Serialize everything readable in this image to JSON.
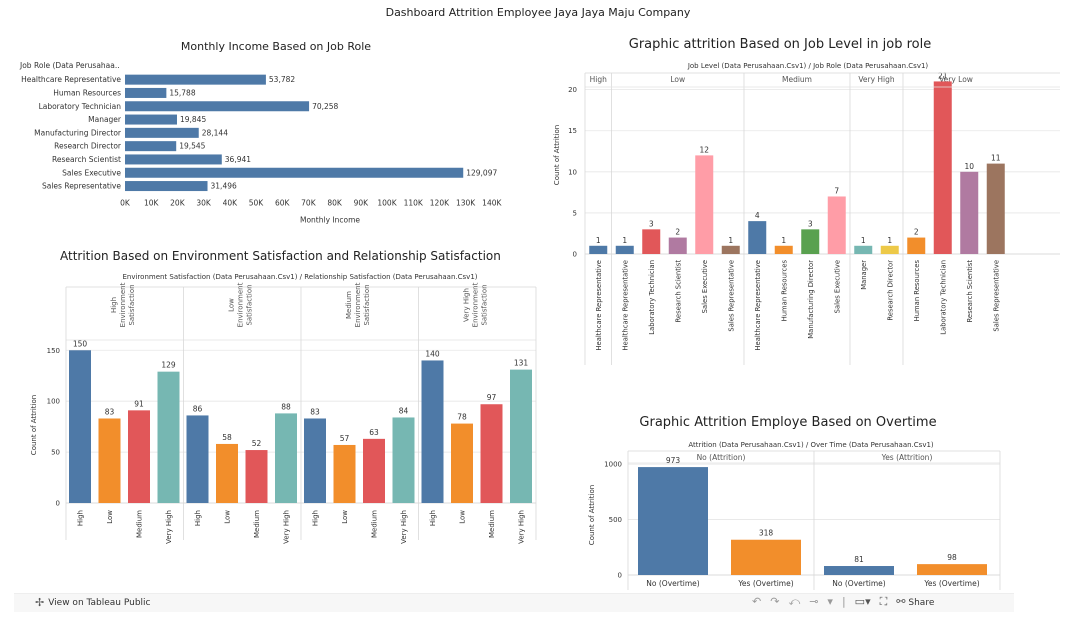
{
  "dashboard": {
    "title": "Dashboard Attrition Employee Jaya Jaya Maju Company"
  },
  "panel_income": {
    "title": "Monthly Income Based on Job Role",
    "header": "Job Role (Data Perusahaa..",
    "xlabel": "Monthly Income",
    "ticks": [
      "0K",
      "10K",
      "20K",
      "30K",
      "40K",
      "50K",
      "60K",
      "70K",
      "80K",
      "90K",
      "100K",
      "110K",
      "120K",
      "130K",
      "140K"
    ],
    "color": "#4e79a7"
  },
  "panel_joblevel": {
    "title": "Graphic attrition Based on Job Level in job role",
    "header": "Job Level (Data Perusahaan.Csv1) / Job Role (Data Perusahaan.Csv1)",
    "ylabel": "Count of Attrition",
    "yticks": [
      "0",
      "5",
      "10",
      "15",
      "20"
    ]
  },
  "panel_env": {
    "title": "Attrition Based on  Environment Satisfaction and Relationship Satisfaction",
    "header": "Environment Satisfaction (Data Perusahaan.Csv1) / Relationship Satisfaction (Data Perusahaan.Csv1)",
    "ylabel": "Count of Attrition",
    "yticks": [
      "0",
      "50",
      "100",
      "150"
    ]
  },
  "panel_overtime": {
    "title": "Graphic Attrition Employe Based on Overtime",
    "header": "Attrition (Data Perusahaan.Csv1) / Over Time (Data Perusahaan.Csv1)",
    "ylabel": "Count of Attrition",
    "yticks": [
      "0",
      "500",
      "1000"
    ]
  },
  "toolbar": {
    "view_label": "View on Tableau Public",
    "share_label": "Share",
    "icons": [
      "tableau-logo-icon",
      "undo-icon",
      "redo-icon",
      "revert-icon",
      "refresh-icon",
      "pause-icon",
      "device-layout-icon",
      "fullscreen-icon",
      "share-icon"
    ]
  },
  "chart_data": [
    {
      "type": "bar",
      "orientation": "horizontal",
      "title": "Monthly Income Based on Job Role",
      "xlabel": "Monthly Income",
      "ylabel": "Job Role (Data Perusahaa..",
      "xlim": [
        0,
        140000
      ],
      "categories": [
        "Healthcare Representative",
        "Human Resources",
        "Laboratory Technician",
        "Manager",
        "Manufacturing Director",
        "Research Director",
        "Research Scientist",
        "Sales Executive",
        "Sales Representative"
      ],
      "values": [
        53782,
        15788,
        70258,
        19845,
        28144,
        19545,
        36941,
        129097,
        31496
      ],
      "value_labels": [
        "53,782",
        "15,788",
        "70,258",
        "19,845",
        "28,144",
        "19,545",
        "36,941",
        "129,097",
        "31,496"
      ]
    },
    {
      "type": "bar",
      "title": "Graphic attrition Based on Job Level in job role",
      "ylabel": "Count of Attrition",
      "ylim": [
        0,
        23
      ],
      "groups": [
        {
          "name": "High",
          "categories": [
            "Healthcare Representative"
          ],
          "values": [
            1
          ]
        },
        {
          "name": "Low",
          "categories": [
            "Healthcare Representative",
            "Laboratory Technician",
            "Research Scientist",
            "Sales Executive",
            "Sales Representative"
          ],
          "values": [
            1,
            3,
            2,
            12,
            1
          ]
        },
        {
          "name": "Medium",
          "categories": [
            "Healthcare Representative",
            "Human Resources",
            "Manufacturing Director",
            "Sales Executive"
          ],
          "values": [
            4,
            1,
            3,
            7
          ]
        },
        {
          "name": "Very High",
          "categories": [
            "Manager",
            "Research Director"
          ],
          "values": [
            1,
            1
          ]
        },
        {
          "name": "Very Low",
          "categories": [
            "Human Resources",
            "Laboratory Technician",
            "Research Scientist",
            "Sales Representative"
          ],
          "values": [
            2,
            21,
            10,
            11
          ]
        }
      ]
    },
    {
      "type": "bar",
      "title": "Attrition Based on  Environment Satisfaction and Relationship Satisfaction",
      "ylabel": "Count of Attrition",
      "ylim": [
        0,
        165
      ],
      "categories": [
        "High",
        "Low",
        "Medium",
        "Very High"
      ],
      "groups": [
        {
          "name": "High Environment Satisfaction",
          "values": [
            150,
            83,
            91,
            129
          ]
        },
        {
          "name": "Low Environment Satisfaction",
          "values": [
            86,
            58,
            52,
            88
          ]
        },
        {
          "name": "Medium Environment Satisfaction",
          "values": [
            83,
            57,
            63,
            84
          ]
        },
        {
          "name": "Very High Environment Satisfaction",
          "values": [
            140,
            78,
            97,
            131
          ]
        }
      ]
    },
    {
      "type": "bar",
      "title": "Graphic Attrition Employe Based on Overtime",
      "ylabel": "Count of Attrition",
      "ylim": [
        0,
        1100
      ],
      "groups": [
        {
          "name": "No (Attrition)",
          "categories": [
            "No (Overtime)",
            "Yes (Overtime)"
          ],
          "values": [
            973,
            318
          ]
        },
        {
          "name": "Yes (Attrition)",
          "categories": [
            "No (Overtime)",
            "Yes (Overtime)"
          ],
          "values": [
            81,
            98
          ]
        }
      ]
    }
  ]
}
